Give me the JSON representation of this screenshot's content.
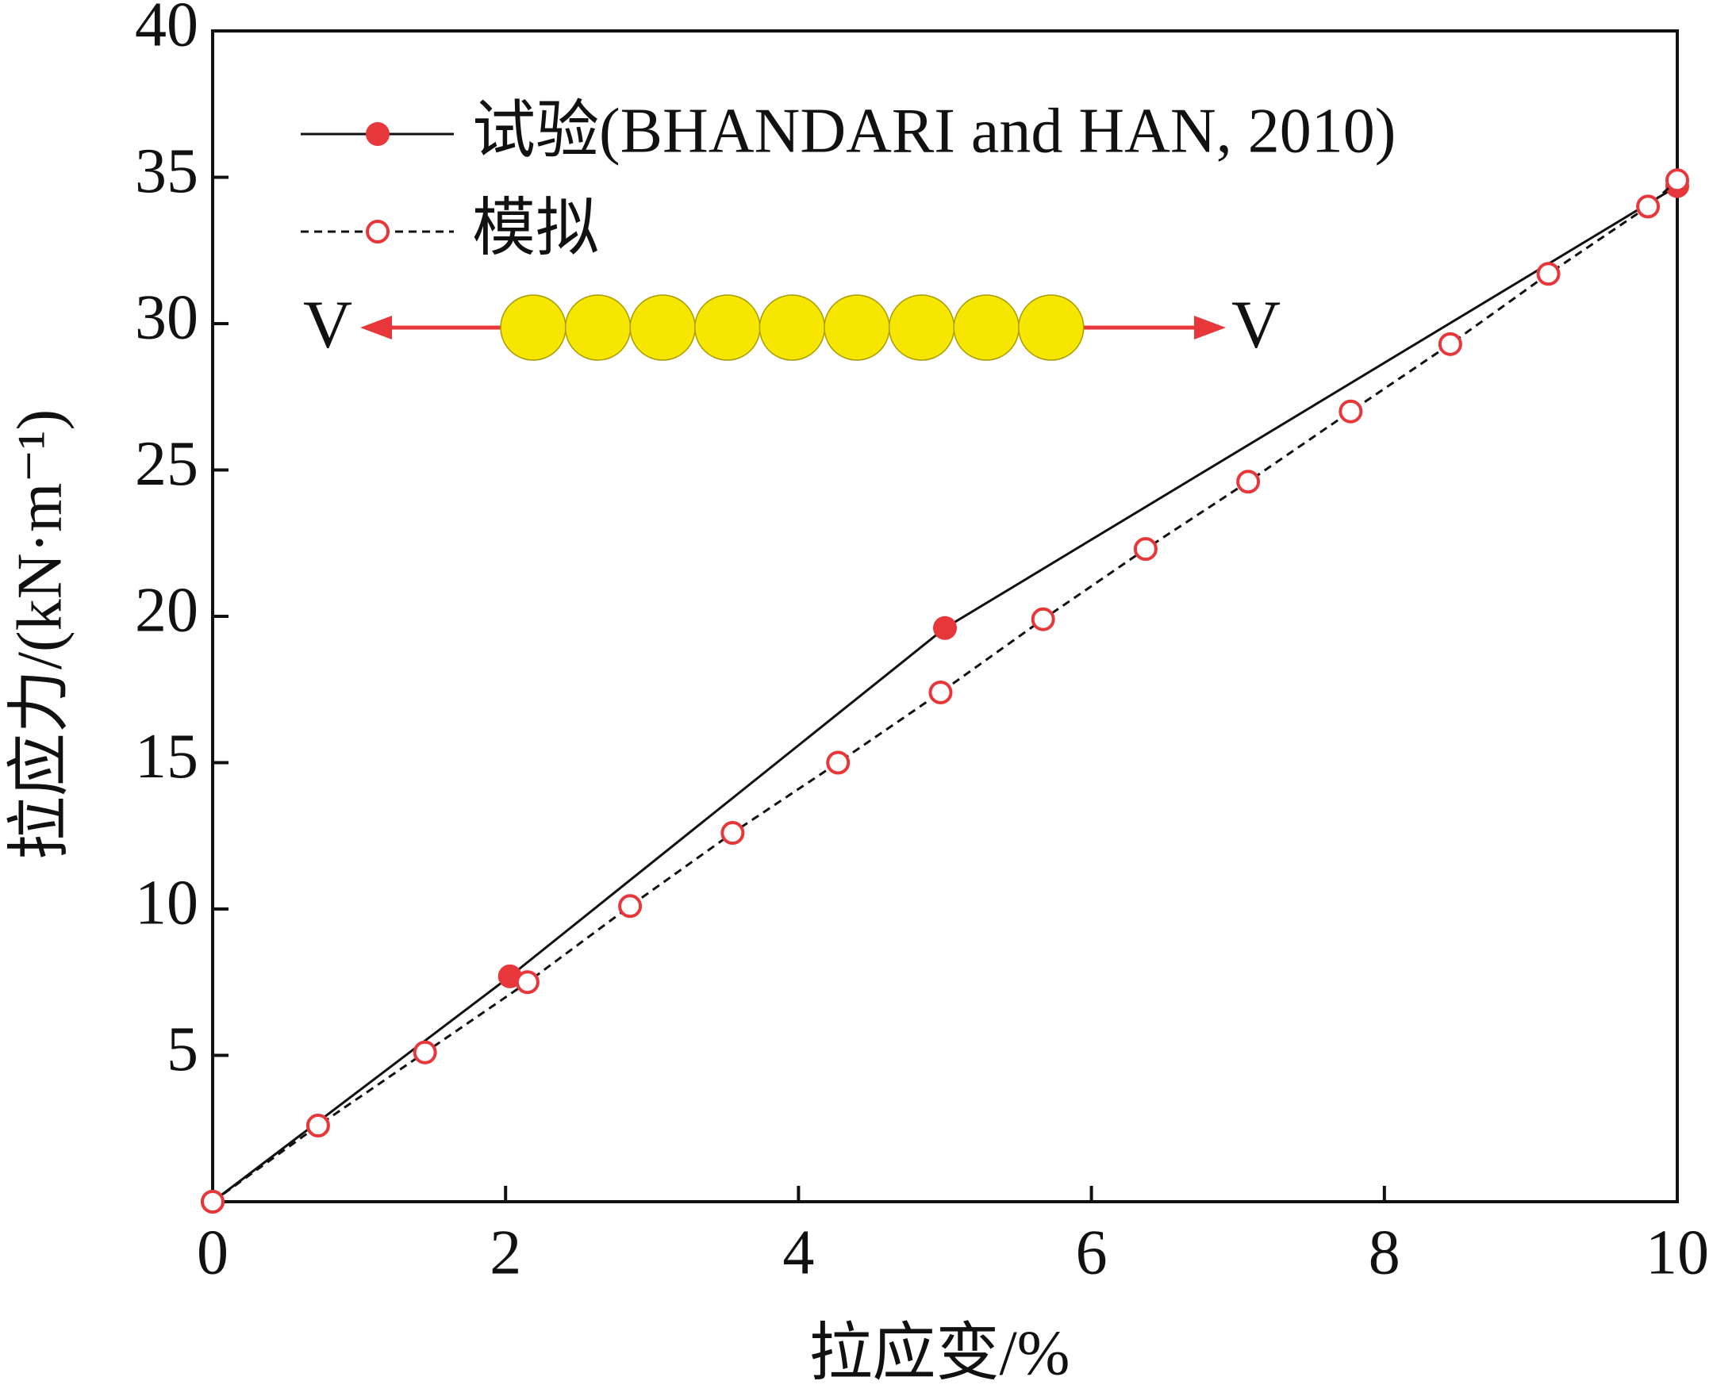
{
  "chart_data": {
    "type": "line",
    "xlabel": "拉应变/%",
    "ylabel": "拉应力/(kN·m⁻¹)",
    "xlim": [
      0,
      10
    ],
    "xticks": [
      0,
      2,
      4,
      6,
      8,
      10
    ],
    "ylim": [
      0,
      40
    ],
    "yticks": [
      5,
      10,
      15,
      20,
      25,
      30,
      35,
      40
    ],
    "annotations": [
      "V",
      "V"
    ],
    "series": [
      {
        "name": "试验(BHANDARI and HAN, 2010)",
        "color": "#e8373a",
        "line": "solid",
        "marker": "filled",
        "x": [
          0,
          2.03,
          5,
          10
        ],
        "values": [
          0,
          7.7,
          19.6,
          34.7
        ]
      },
      {
        "name": "模拟",
        "color": "#e8373a",
        "line": "dashed",
        "marker": "open",
        "x": [
          0,
          0.72,
          1.45,
          2.15,
          2.85,
          3.55,
          4.27,
          4.97,
          5.67,
          6.37,
          7.07,
          7.77,
          8.45,
          9.12,
          9.8,
          10
        ],
        "values": [
          0,
          2.6,
          5.1,
          7.5,
          10.1,
          12.6,
          15,
          17.4,
          19.9,
          22.3,
          24.6,
          27,
          29.3,
          31.7,
          34,
          34.9
        ]
      }
    ]
  }
}
